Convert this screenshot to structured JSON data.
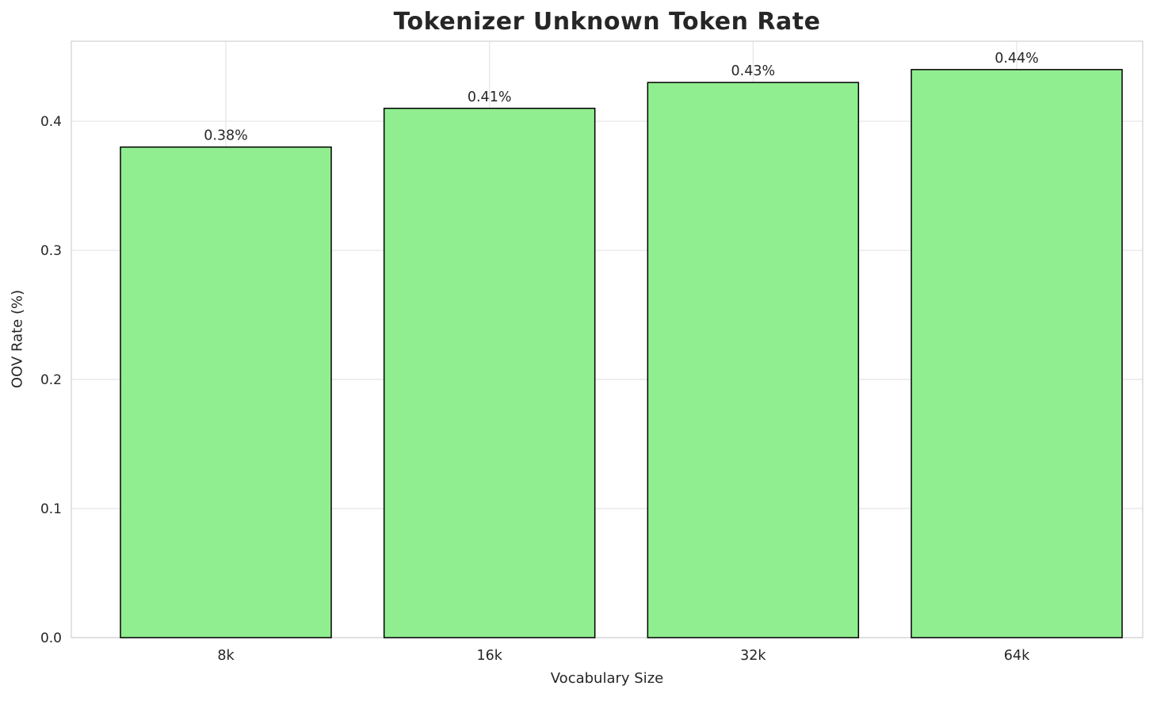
{
  "chart_data": {
    "type": "bar",
    "title": "Tokenizer Unknown Token Rate",
    "xlabel": "Vocabulary Size",
    "ylabel": "OOV Rate (%)",
    "categories": [
      "8k",
      "16k",
      "32k",
      "64k"
    ],
    "values": [
      0.38,
      0.41,
      0.43,
      0.44
    ],
    "value_labels": [
      "0.38%",
      "0.41%",
      "0.43%",
      "0.44%"
    ],
    "y_ticks": [
      {
        "value": 0.0,
        "label": "0.0"
      },
      {
        "value": 0.1,
        "label": "0.1"
      },
      {
        "value": 0.2,
        "label": "0.2"
      },
      {
        "value": 0.3,
        "label": "0.3"
      },
      {
        "value": 0.4,
        "label": "0.4"
      }
    ],
    "ylim": [
      0,
      0.462
    ],
    "grid": true,
    "legend": "none",
    "colors": {
      "bar_fill": "#90EE90",
      "bar_edge": "#000000",
      "grid": "#e4e4e4",
      "frame": "#d4d4d4",
      "text": "#262626"
    }
  }
}
